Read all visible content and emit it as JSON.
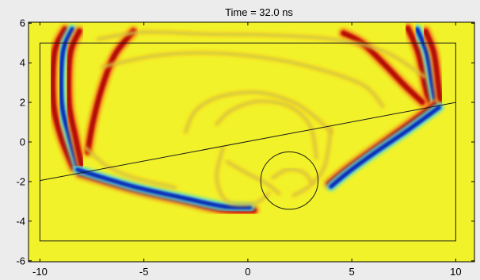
{
  "chart_data": {
    "type": "heatmap",
    "title": "Time = 32.0 ns",
    "xlim": [
      -10.55,
      10.9
    ],
    "ylim": [
      -6.05,
      6.05
    ],
    "x_ticks": [
      -10,
      -5,
      0,
      5,
      10
    ],
    "x_tick_labels": [
      "-10",
      "-5",
      "0",
      "5",
      "10"
    ],
    "y_ticks": [
      -6,
      -4,
      -2,
      0,
      2,
      4,
      6
    ],
    "y_tick_labels": [
      "-6",
      "-4",
      "-2",
      "0",
      "2",
      "4",
      "6"
    ],
    "grid": false,
    "colormap": "jet",
    "colors": {
      "background": "#f2f22a",
      "page": "#ececec",
      "line": "#1a1a1a"
    },
    "geometry": {
      "rectangle": {
        "x0": -10,
        "x1": 10,
        "y0": -5,
        "y1": 5
      },
      "interface_line": [
        [
          -10,
          -1.95
        ],
        [
          10,
          2.0
        ]
      ],
      "circle": {
        "cx": 2.0,
        "cy": -1.95,
        "r": 1.45
      }
    },
    "wavefronts": [
      {
        "kind": "red",
        "points": [
          [
            -8.8,
            5.7
          ],
          [
            -9.3,
            4.5
          ],
          [
            -9.35,
            2.0
          ],
          [
            -9.0,
            0.3
          ],
          [
            -8.4,
            -1.3
          ]
        ]
      },
      {
        "kind": "blue",
        "points": [
          [
            -8.45,
            5.7
          ],
          [
            -8.9,
            4.5
          ],
          [
            -8.95,
            2.0
          ],
          [
            -8.6,
            0.3
          ],
          [
            -8.2,
            -1.2
          ]
        ]
      },
      {
        "kind": "red",
        "points": [
          [
            -8.1,
            5.6
          ],
          [
            -8.55,
            4.4
          ],
          [
            -8.6,
            2.0
          ],
          [
            -8.3,
            0.3
          ],
          [
            -8.0,
            -1.15
          ]
        ]
      },
      {
        "kind": "red",
        "points": [
          [
            -5.5,
            5.6
          ],
          [
            -6.4,
            4.4
          ],
          [
            -7.0,
            2.8
          ],
          [
            -7.45,
            1.0
          ],
          [
            -7.7,
            -0.5
          ]
        ]
      },
      {
        "kind": "red",
        "points": [
          [
            -8.1,
            -1.6
          ],
          [
            -5.5,
            -2.4
          ],
          [
            -3.0,
            -3.0
          ],
          [
            -1.3,
            -3.4
          ],
          [
            0.3,
            -3.45
          ]
        ]
      },
      {
        "kind": "blue",
        "points": [
          [
            -8.2,
            -1.4
          ],
          [
            -5.5,
            -2.25
          ],
          [
            -3.0,
            -2.85
          ],
          [
            -1.2,
            -3.25
          ],
          [
            0.1,
            -3.3
          ]
        ]
      },
      {
        "kind": "red",
        "points": [
          [
            7.7,
            5.75
          ],
          [
            8.2,
            4.5
          ],
          [
            8.5,
            3.0
          ],
          [
            8.7,
            2.05
          ]
        ]
      },
      {
        "kind": "blue",
        "points": [
          [
            8.15,
            5.7
          ],
          [
            8.6,
            4.5
          ],
          [
            8.85,
            3.0
          ],
          [
            9.0,
            2.1
          ]
        ]
      },
      {
        "kind": "red",
        "points": [
          [
            8.55,
            5.6
          ],
          [
            8.95,
            4.5
          ],
          [
            9.15,
            3.0
          ],
          [
            9.25,
            2.1
          ]
        ]
      },
      {
        "kind": "red",
        "points": [
          [
            4.6,
            5.5
          ],
          [
            5.5,
            5.0
          ],
          [
            6.5,
            4.0
          ],
          [
            7.5,
            2.9
          ],
          [
            8.4,
            2.0
          ]
        ]
      },
      {
        "kind": "red",
        "points": [
          [
            9.0,
            1.9
          ],
          [
            7.6,
            0.8
          ],
          [
            6.0,
            -0.4
          ],
          [
            4.7,
            -1.4
          ],
          [
            3.9,
            -2.1
          ]
        ]
      },
      {
        "kind": "blue",
        "points": [
          [
            9.2,
            1.75
          ],
          [
            7.7,
            0.6
          ],
          [
            6.1,
            -0.55
          ],
          [
            4.8,
            -1.55
          ],
          [
            4.0,
            -2.25
          ]
        ]
      },
      {
        "kind": "yellow",
        "points": [
          [
            -7.2,
            5.2
          ],
          [
            -5.0,
            5.55
          ],
          [
            -2.0,
            5.45
          ],
          [
            1.0,
            5.4
          ],
          [
            4.0,
            5.2
          ],
          [
            6.5,
            4.6
          ],
          [
            8.5,
            3.3
          ]
        ]
      },
      {
        "kind": "yellow",
        "points": [
          [
            -7.0,
            3.8
          ],
          [
            -4.5,
            4.35
          ],
          [
            -2.0,
            4.5
          ],
          [
            0.5,
            4.3
          ],
          [
            3.0,
            3.8
          ],
          [
            5.5,
            2.9
          ],
          [
            6.5,
            1.8
          ]
        ]
      },
      {
        "kind": "yellow",
        "points": [
          [
            -3.0,
            0.5
          ],
          [
            -2.5,
            1.6
          ],
          [
            -1.3,
            2.3
          ],
          [
            0.5,
            2.5
          ],
          [
            2.2,
            2.0
          ],
          [
            3.3,
            1.2
          ],
          [
            4.0,
            0.5
          ]
        ]
      },
      {
        "kind": "yellow",
        "points": [
          [
            -1.2,
            -0.3
          ],
          [
            -1.5,
            -1.8
          ],
          [
            -1.0,
            -3.0
          ],
          [
            0.3,
            -3.1
          ],
          [
            1.0,
            -2.6
          ]
        ]
      },
      {
        "kind": "yellow",
        "points": [
          [
            4.0,
            0.7
          ],
          [
            3.7,
            -1.2
          ],
          [
            3.0,
            -2.2
          ],
          [
            2.2,
            -2.7
          ]
        ]
      },
      {
        "kind": "yellow",
        "points": [
          [
            1.2,
            -1.8
          ],
          [
            1.9,
            -1.4
          ],
          [
            2.7,
            -1.55
          ],
          [
            3.1,
            -2.1
          ]
        ]
      },
      {
        "kind": "yellow",
        "points": [
          [
            -7.8,
            -0.3
          ],
          [
            -6.8,
            -1.2
          ],
          [
            -5.5,
            -1.8
          ],
          [
            -3.5,
            -2.3
          ]
        ]
      },
      {
        "kind": "yellow",
        "points": [
          [
            -1.0,
            -1.0
          ],
          [
            0.0,
            -1.6
          ],
          [
            0.9,
            -2.1
          ],
          [
            1.5,
            -2.6
          ]
        ]
      },
      {
        "kind": "yellow",
        "points": [
          [
            3.3,
            -0.8
          ],
          [
            3.0,
            0.8
          ],
          [
            2.0,
            1.8
          ],
          [
            0.5,
            2.05
          ],
          [
            -0.8,
            1.6
          ],
          [
            -1.5,
            0.9
          ]
        ]
      }
    ]
  }
}
